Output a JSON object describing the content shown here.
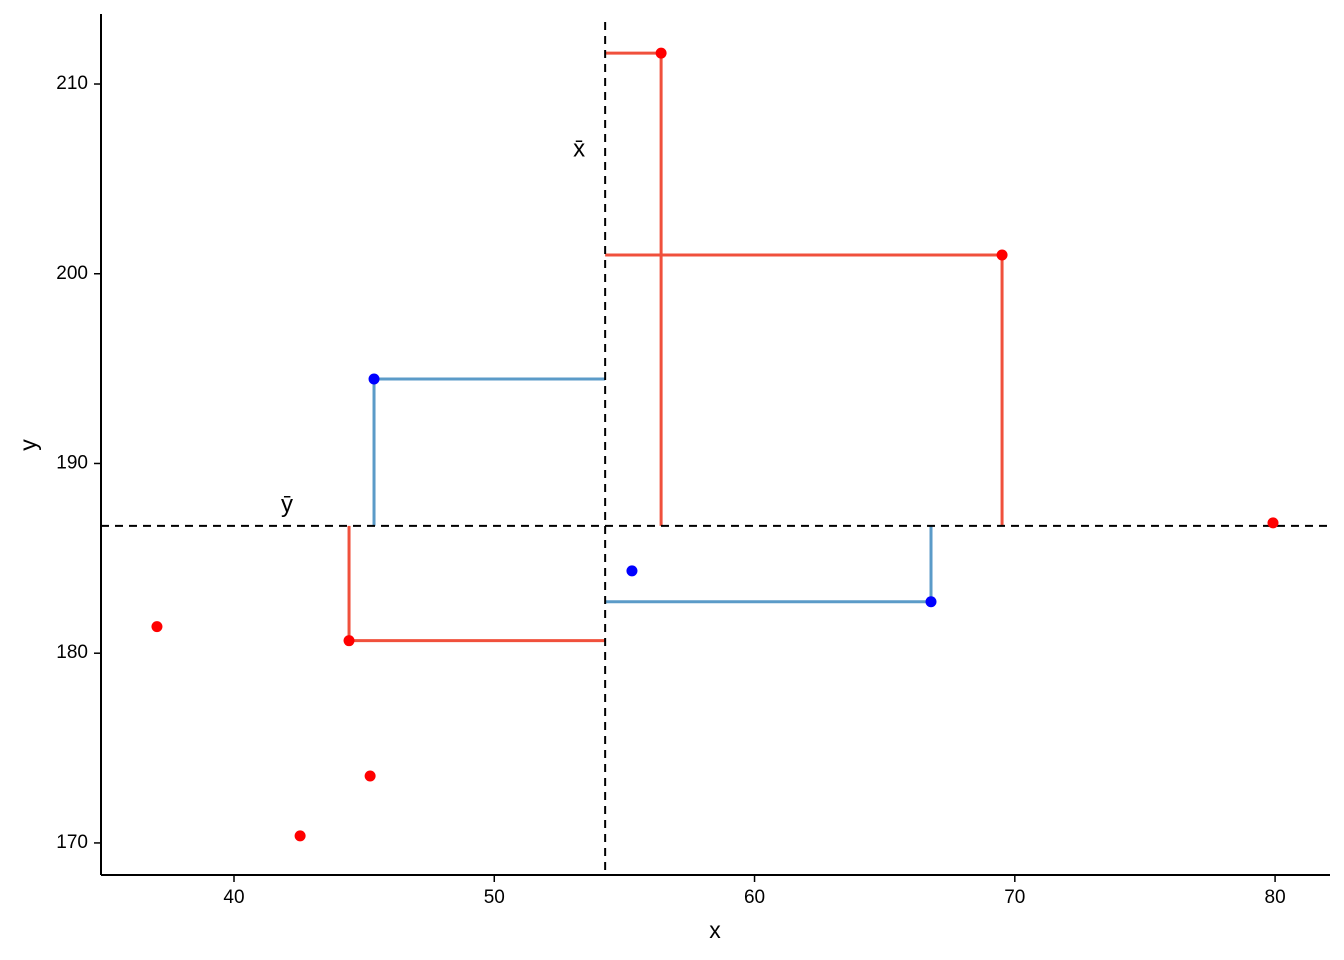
{
  "chart_data": {
    "type": "scatter",
    "x_label": "x",
    "y_label": "y",
    "xlim": [
      34.89,
      82.11
    ],
    "ylim": [
      168.31,
      213.69
    ],
    "xticks": [
      40,
      50,
      60,
      70,
      80
    ],
    "yticks": [
      170,
      180,
      190,
      200,
      210
    ],
    "grid": false,
    "mean_lines": {
      "x": {
        "value": 54.26,
        "label": "x̄"
      },
      "y": {
        "value": 186.71,
        "label": "ȳ"
      }
    },
    "series": [
      {
        "color": "#ff0000",
        "line_color": "#f0503c",
        "x": [
          56.41,
          69.51,
          44.42
        ],
        "values": [
          211.63,
          200.99,
          180.66
        ]
      },
      {
        "color": "#0000ff",
        "line_color": "#5b9bc8",
        "x": [
          45.38,
          66.78
        ],
        "values": [
          194.45,
          182.71
        ]
      },
      {
        "color": "#0000ff",
        "x": [
          55.29
        ],
        "values": [
          184.34
        ]
      },
      {
        "color": "#ff0000",
        "x": [
          79.92,
          37.04,
          45.23,
          42.54
        ],
        "values": [
          186.87,
          181.4,
          173.53,
          170.37
        ]
      }
    ]
  }
}
